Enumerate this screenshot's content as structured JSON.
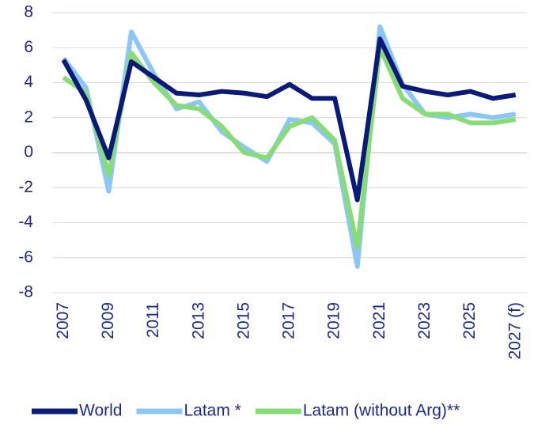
{
  "chart_data": {
    "type": "line",
    "categories": [
      "2007",
      null,
      "2009",
      null,
      "2011",
      null,
      "2013",
      null,
      "2015",
      null,
      "2017",
      null,
      "2019",
      null,
      "2021",
      null,
      "2023",
      null,
      "2025",
      null,
      "2027 (f)"
    ],
    "series": [
      {
        "name": "World",
        "color": "#0b1a78",
        "values": [
          5.3,
          3.0,
          -0.3,
          5.2,
          4.3,
          3.4,
          3.3,
          3.5,
          3.4,
          3.2,
          3.9,
          3.1,
          3.1,
          -2.7,
          6.5,
          3.8,
          3.5,
          3.3,
          3.5,
          3.1,
          3.3
        ]
      },
      {
        "name": "Latam *",
        "color": "#8cc6f5",
        "values": [
          5.4,
          3.7,
          -2.2,
          6.9,
          4.5,
          2.5,
          2.9,
          1.2,
          0.3,
          -0.5,
          1.9,
          1.7,
          0.5,
          -6.5,
          7.2,
          3.9,
          2.2,
          2.0,
          2.2,
          2.0,
          2.2
        ]
      },
      {
        "name": "Latam (without Arg)**",
        "color": "#88dc78",
        "values": [
          4.3,
          3.4,
          -1.3,
          5.7,
          4.0,
          2.7,
          2.5,
          1.5,
          0.0,
          -0.3,
          1.5,
          2.0,
          0.7,
          -5.4,
          6.0,
          3.1,
          2.2,
          2.2,
          1.7,
          1.7,
          1.9
        ]
      }
    ],
    "ylim": [
      -8,
      8
    ],
    "yticks": [
      -8,
      -6,
      -4,
      -2,
      0,
      2,
      4,
      6,
      8
    ],
    "grid": true,
    "legend": "bottom"
  }
}
